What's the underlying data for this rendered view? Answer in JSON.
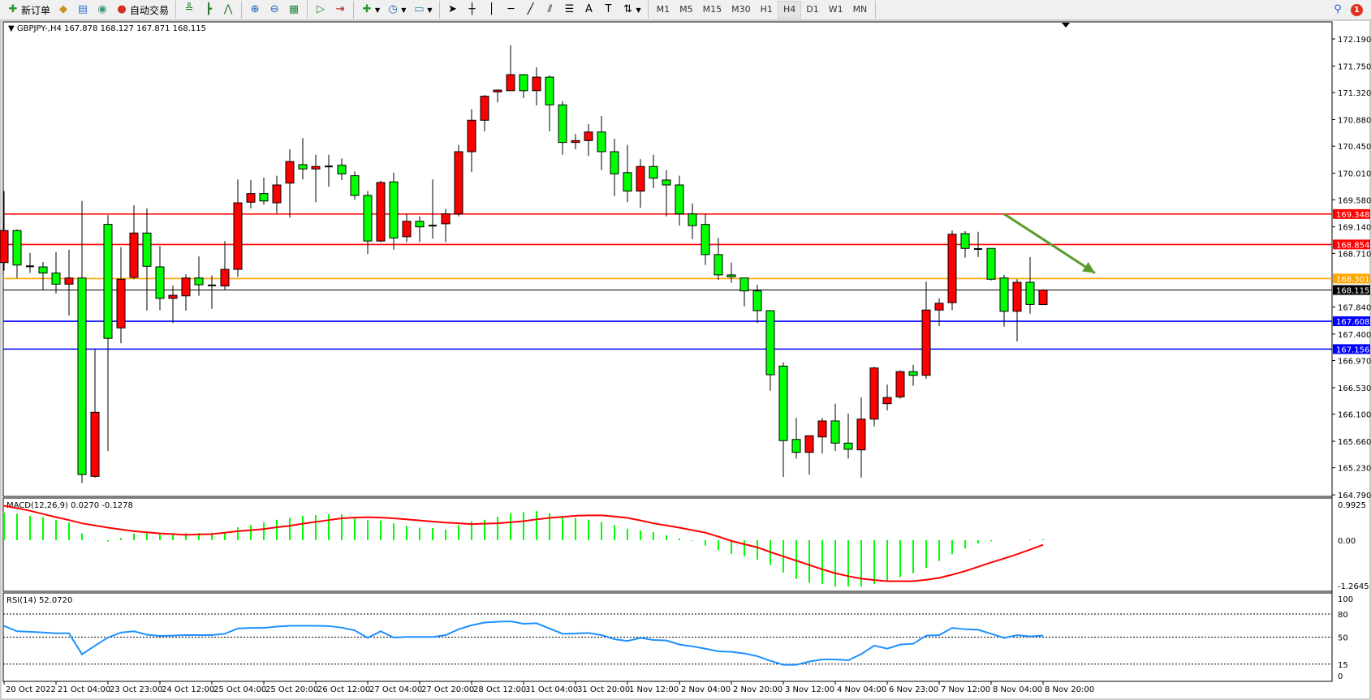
{
  "toolbar": {
    "new_order_label": "新订单",
    "auto_trading_label": "自动交易",
    "timeframes": [
      "M1",
      "M5",
      "M15",
      "M30",
      "H1",
      "H4",
      "D1",
      "W1",
      "MN"
    ],
    "active_timeframe": "H4",
    "notification_count": "1",
    "icons": [
      "new-order-icon",
      "gold-icon",
      "market-watch-icon",
      "signal-icon",
      "auto-trading-icon",
      "bar-chart-icon",
      "candlestick-icon",
      "line-chart-icon",
      "zoom-in-icon",
      "zoom-out-icon",
      "tile-windows-icon",
      "auto-scroll-icon",
      "chart-shift-icon",
      "indicators-icon",
      "periods-icon",
      "templates-icon",
      "cursor-icon",
      "crosshair-icon",
      "vertical-line-icon",
      "horizontal-line-icon",
      "trendline-icon",
      "fibonacci-channel-icon",
      "fibonacci-icon",
      "text-icon",
      "text-label-icon",
      "arrows-icon",
      "search-icon",
      "notification-icon"
    ]
  },
  "chart_header": {
    "symbol": "GBPJPY-,H4",
    "ohlc": "167.878 168.127 167.871 168.115"
  },
  "chart_data": {
    "type": "candlestick",
    "symbol": "GBPJPY-",
    "timeframe": "H4",
    "colors": {
      "bull": "#ff0000",
      "bear": "#00ff00",
      "outline": "#000000"
    },
    "grid": false,
    "ylim": [
      164.79,
      172.19
    ],
    "y_ticks": [
      "172.190",
      "171.750",
      "171.320",
      "170.880",
      "170.450",
      "170.010",
      "169.580",
      "169.140",
      "168.710",
      "167.840",
      "167.400",
      "166.970",
      "166.530",
      "166.100",
      "165.660",
      "165.230",
      "164.790"
    ],
    "x_labels": [
      "20 Oct 2022",
      "21 Oct 04:00",
      "23 Oct 23:00",
      "24 Oct 12:00",
      "25 Oct 04:00",
      "25 Oct 20:00",
      "26 Oct 12:00",
      "27 Oct 04:00",
      "27 Oct 20:00",
      "28 Oct 12:00",
      "31 Oct 04:00",
      "31 Oct 20:00",
      "1 Nov 12:00",
      "2 Nov 04:00",
      "2 Nov 20:00",
      "3 Nov 12:00",
      "4 Nov 04:00",
      "6 Nov 23:00",
      "7 Nov 12:00",
      "8 Nov 04:00",
      "8 Nov 20:00"
    ],
    "x_label_every_bars": 4,
    "ohlc": [
      [
        168.56,
        169.72,
        168.43,
        169.08
      ],
      [
        169.08,
        169.1,
        168.31,
        168.52
      ],
      [
        168.5,
        168.72,
        168.39,
        168.5
      ],
      [
        168.49,
        168.57,
        168.12,
        168.39
      ],
      [
        168.39,
        168.73,
        168.06,
        168.21
      ],
      [
        168.21,
        168.77,
        167.7,
        168.31
      ],
      [
        168.31,
        169.56,
        164.98,
        165.12
      ],
      [
        165.09,
        167.15,
        165.07,
        166.13
      ],
      [
        169.18,
        169.33,
        165.5,
        167.33
      ],
      [
        167.5,
        168.81,
        167.25,
        168.29
      ],
      [
        168.32,
        169.49,
        168.29,
        169.04
      ],
      [
        169.04,
        169.44,
        167.78,
        168.5
      ],
      [
        168.49,
        168.83,
        167.79,
        167.98
      ],
      [
        167.98,
        168.19,
        167.58,
        168.03
      ],
      [
        168.02,
        168.37,
        167.78,
        168.31
      ],
      [
        168.31,
        168.66,
        168.02,
        168.2
      ],
      [
        168.19,
        168.35,
        167.81,
        168.19
      ],
      [
        168.18,
        168.91,
        168.12,
        168.45
      ],
      [
        168.45,
        169.91,
        168.33,
        169.53
      ],
      [
        169.54,
        169.9,
        169.44,
        169.68
      ],
      [
        169.68,
        169.94,
        169.5,
        169.56
      ],
      [
        169.53,
        169.97,
        169.36,
        169.82
      ],
      [
        169.85,
        170.4,
        169.29,
        170.2
      ],
      [
        170.15,
        170.58,
        169.91,
        170.08
      ],
      [
        170.08,
        170.31,
        169.54,
        170.12
      ],
      [
        170.12,
        170.31,
        169.79,
        170.12
      ],
      [
        170.14,
        170.25,
        169.9,
        170.0
      ],
      [
        169.97,
        170.04,
        169.58,
        169.65
      ],
      [
        169.65,
        169.72,
        168.7,
        168.91
      ],
      [
        168.91,
        169.89,
        168.89,
        169.86
      ],
      [
        169.87,
        170.02,
        168.77,
        168.96
      ],
      [
        168.98,
        169.35,
        168.89,
        169.23
      ],
      [
        169.23,
        169.31,
        168.89,
        169.14
      ],
      [
        169.16,
        169.91,
        168.95,
        169.16
      ],
      [
        169.19,
        169.43,
        168.89,
        169.35
      ],
      [
        169.35,
        170.47,
        169.31,
        170.36
      ],
      [
        170.36,
        171.05,
        170.03,
        170.87
      ],
      [
        170.87,
        171.28,
        170.69,
        171.26
      ],
      [
        171.33,
        171.37,
        171.16,
        171.36
      ],
      [
        171.35,
        172.09,
        171.35,
        171.61
      ],
      [
        171.61,
        171.62,
        171.23,
        171.35
      ],
      [
        171.35,
        171.73,
        171.11,
        171.57
      ],
      [
        171.57,
        171.6,
        170.69,
        171.12
      ],
      [
        171.12,
        171.18,
        170.31,
        170.51
      ],
      [
        170.51,
        170.65,
        170.4,
        170.54
      ],
      [
        170.54,
        170.81,
        170.29,
        170.68
      ],
      [
        170.68,
        170.94,
        170.06,
        170.36
      ],
      [
        170.36,
        170.57,
        169.64,
        170.0
      ],
      [
        170.02,
        170.47,
        169.54,
        169.72
      ],
      [
        169.72,
        170.24,
        169.45,
        170.12
      ],
      [
        170.12,
        170.31,
        169.77,
        169.93
      ],
      [
        169.9,
        170.06,
        169.31,
        169.82
      ],
      [
        169.82,
        169.97,
        169.16,
        169.35
      ],
      [
        169.35,
        169.52,
        168.94,
        169.16
      ],
      [
        169.18,
        169.35,
        168.52,
        168.69
      ],
      [
        168.69,
        168.96,
        168.28,
        168.36
      ],
      [
        168.36,
        168.56,
        168.23,
        168.33
      ],
      [
        168.31,
        168.31,
        167.85,
        168.1
      ],
      [
        168.1,
        168.2,
        167.58,
        167.78
      ],
      [
        167.78,
        167.78,
        166.48,
        166.74
      ],
      [
        166.88,
        166.94,
        165.08,
        165.67
      ],
      [
        165.69,
        166.04,
        165.38,
        165.48
      ],
      [
        165.48,
        165.75,
        165.12,
        165.75
      ],
      [
        165.73,
        166.04,
        165.46,
        165.99
      ],
      [
        165.99,
        166.27,
        165.5,
        165.63
      ],
      [
        165.63,
        166.11,
        165.38,
        165.53
      ],
      [
        165.52,
        166.37,
        165.07,
        166.02
      ],
      [
        166.02,
        166.87,
        165.9,
        166.85
      ],
      [
        166.27,
        166.58,
        166.16,
        166.37
      ],
      [
        166.38,
        166.81,
        166.35,
        166.79
      ],
      [
        166.79,
        166.9,
        166.56,
        166.73
      ],
      [
        166.73,
        168.25,
        166.67,
        167.79
      ],
      [
        167.79,
        167.98,
        167.53,
        167.9
      ],
      [
        167.91,
        169.08,
        167.79,
        169.02
      ],
      [
        169.03,
        169.07,
        168.64,
        168.79
      ],
      [
        168.78,
        169.06,
        168.65,
        168.78
      ],
      [
        168.79,
        168.79,
        168.27,
        168.29
      ],
      [
        168.31,
        168.36,
        167.52,
        167.77
      ],
      [
        167.77,
        168.29,
        167.28,
        168.24
      ],
      [
        168.24,
        168.65,
        167.73,
        167.88
      ],
      [
        167.878,
        168.127,
        167.871,
        168.115
      ]
    ],
    "horizontal_lines": [
      {
        "price": 169.348,
        "label": "169.348",
        "color": "#ff0000"
      },
      {
        "price": 168.854,
        "label": "168.854",
        "color": "#ff0000"
      },
      {
        "price": 168.301,
        "label": "168.301",
        "color": "#ffa500"
      },
      {
        "price": 168.115,
        "label": "168.115",
        "color": "#000000"
      },
      {
        "price": 167.608,
        "label": "167.608",
        "color": "#0000ff"
      },
      {
        "price": 167.156,
        "label": "167.156",
        "color": "#0000ff"
      }
    ],
    "trend_arrow": {
      "color": "#5a9a2a",
      "from": {
        "bar": 77,
        "price": 169.35
      },
      "to": {
        "bar": 84,
        "price": 168.39
      }
    },
    "macd": {
      "label": "MACD(12,26,9) 0.0270 -0.1278",
      "ylim": [
        -1.2645,
        0.9925
      ],
      "y_ticks": [
        "0.9925",
        "0.00",
        "-1.2645"
      ],
      "hist_color": "#00ff00",
      "signal_color": "#ff0000",
      "histogram": [
        0.76,
        0.74,
        0.68,
        0.64,
        0.56,
        0.49,
        0.19,
        0.01,
        -0.04,
        0.06,
        0.19,
        0.21,
        0.21,
        0.19,
        0.2,
        0.2,
        0.21,
        0.23,
        0.36,
        0.42,
        0.49,
        0.57,
        0.62,
        0.68,
        0.7,
        0.72,
        0.72,
        0.64,
        0.56,
        0.55,
        0.47,
        0.4,
        0.35,
        0.34,
        0.3,
        0.42,
        0.53,
        0.57,
        0.65,
        0.75,
        0.78,
        0.81,
        0.75,
        0.68,
        0.62,
        0.57,
        0.51,
        0.42,
        0.32,
        0.27,
        0.23,
        0.14,
        0.05,
        -0.02,
        -0.15,
        -0.28,
        -0.38,
        -0.45,
        -0.54,
        -0.69,
        -0.9,
        -1.08,
        -1.18,
        -1.22,
        -1.29,
        -1.29,
        -1.29,
        -1.22,
        -1.14,
        -1.03,
        -0.92,
        -0.77,
        -0.58,
        -0.39,
        -0.23,
        -0.09,
        -0.03,
        0.0,
        0.0,
        0.02,
        0.027
      ],
      "signal": [
        0.96,
        0.89,
        0.82,
        0.73,
        0.64,
        0.56,
        0.47,
        0.41,
        0.35,
        0.3,
        0.25,
        0.22,
        0.19,
        0.17,
        0.15,
        0.16,
        0.17,
        0.21,
        0.25,
        0.28,
        0.31,
        0.36,
        0.4,
        0.46,
        0.51,
        0.56,
        0.61,
        0.63,
        0.64,
        0.63,
        0.61,
        0.58,
        0.55,
        0.52,
        0.49,
        0.47,
        0.45,
        0.46,
        0.47,
        0.5,
        0.53,
        0.58,
        0.62,
        0.65,
        0.68,
        0.69,
        0.69,
        0.66,
        0.62,
        0.55,
        0.47,
        0.41,
        0.35,
        0.28,
        0.21,
        0.1,
        -0.02,
        -0.11,
        -0.2,
        -0.33,
        -0.45,
        -0.57,
        -0.69,
        -0.81,
        -0.92,
        -1.0,
        -1.07,
        -1.11,
        -1.14,
        -1.14,
        -1.14,
        -1.1,
        -1.05,
        -0.96,
        -0.86,
        -0.74,
        -0.62,
        -0.51,
        -0.39,
        -0.26,
        -0.1278
      ]
    },
    "rsi": {
      "label": "RSI(14) 52.0720",
      "ylim": [
        0,
        100
      ],
      "levels": [
        80,
        50,
        15
      ],
      "y_ticks": [
        "100",
        "80",
        "50",
        "15",
        "0"
      ],
      "color": "#1e90ff",
      "values": [
        64.5,
        57.6,
        57,
        56,
        55,
        55,
        27.7,
        38.9,
        49.5,
        56,
        57.6,
        53,
        51.6,
        52,
        52.6,
        52.6,
        52.6,
        54.4,
        61.2,
        62,
        62,
        63.7,
        64.7,
        64.7,
        64.7,
        64.4,
        62.3,
        58.8,
        49,
        57.6,
        49.5,
        50.2,
        50.2,
        50.2,
        52.6,
        60.2,
        65.4,
        68.9,
        70,
        70.5,
        67.4,
        68,
        61.2,
        54.4,
        54.7,
        55.4,
        52.6,
        47.4,
        45,
        49,
        46.3,
        45.6,
        40.4,
        38,
        35,
        31.6,
        30.9,
        28.8,
        25.3,
        19.3,
        14.1,
        14.1,
        18.3,
        21,
        21,
        20,
        28,
        39,
        35,
        40.4,
        41.4,
        52,
        52.6,
        62,
        60.2,
        59.6,
        54.4,
        49,
        52.6,
        50.9,
        52.072
      ]
    }
  }
}
